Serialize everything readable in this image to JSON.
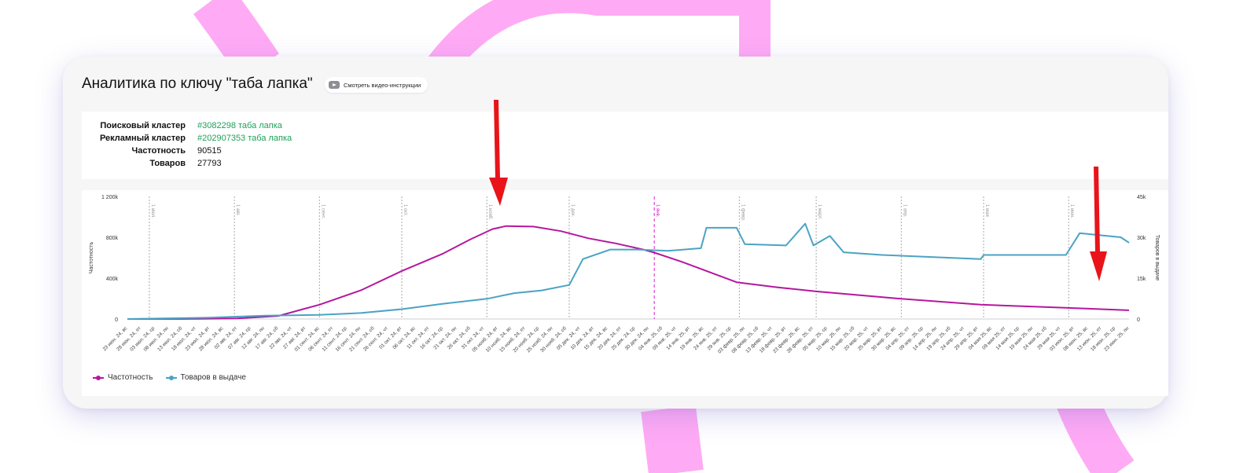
{
  "colors": {
    "accent_pink": "#ffaaf5",
    "frequency_line": "#b5179e",
    "products_line": "#4aa3c4",
    "link_green": "#1fa05a",
    "arrow_red": "#e8141a"
  },
  "header": {
    "title": "Аналитика по ключу \"таба лапка\"",
    "video_button_label": "Смотреть видео-инструкции",
    "video_icon": "play-icon"
  },
  "info": {
    "search_cluster_label": "Поисковый кластер",
    "search_cluster_value": "#3082298 таба лапка",
    "ad_cluster_label": "Рекламный кластер",
    "ad_cluster_value": "#202907353 таба лапка",
    "frequency_label": "Частотность",
    "frequency_value": "90515",
    "products_label": "Товаров",
    "products_value": "27793"
  },
  "chart_data": {
    "type": "line",
    "y_left_label": "Частотность",
    "y_right_label": "Товаров в выдаче",
    "y_left_ticks": [
      "0",
      "400k",
      "800k",
      "1 200k"
    ],
    "y_left_range": [
      0,
      1200000
    ],
    "y_right_ticks": [
      "0",
      "15k",
      "30k",
      "45k"
    ],
    "y_right_range": [
      0,
      45000
    ],
    "month_markers": [
      "1 июл.",
      "1 авг.",
      "1 сент.",
      "1 окт.",
      "1 нояб.",
      "1 дек.",
      "1 янв.",
      "1 февр.",
      "1 март.",
      "1 апр.",
      "1 мая",
      "1 июн."
    ],
    "today_marker": "1 янв.",
    "x_labels": [
      "23 июн. 24, вс",
      "28 июн. 24, пт",
      "03 июл. 24, ср",
      "08 июл. 24, пн",
      "13 июл. 24, сб",
      "18 июл. 24, чт",
      "23 июл. 24, вт",
      "28 июл. 24, вс",
      "02 авг. 24, пт",
      "07 авг. 24, ср",
      "12 авг. 24, пн",
      "17 авг. 24, сб",
      "22 авг. 24, чт",
      "27 авг. 24, вт",
      "01 сент. 24, вс",
      "06 сент. 24, пт",
      "11 сент. 24, ср",
      "16 сент. 24, пн",
      "21 сент. 24, сб",
      "26 сент. 24, чт",
      "01 окт. 24, вт",
      "06 окт. 24, вс",
      "11 окт. 24, пт",
      "16 окт. 24, ср",
      "21 окт. 24, пн",
      "26 окт. 24, сб",
      "31 окт. 24, чт",
      "05 нояб. 24, вт",
      "10 нояб. 24, вс",
      "15 нояб. 24, пт",
      "20 нояб. 24, ср",
      "25 нояб. 24, пн",
      "30 нояб. 24, сб",
      "05 дек. 24, чт",
      "10 дек. 24, вт",
      "15 дек. 24, вс",
      "20 дек. 24, пт",
      "25 дек. 24, ср",
      "30 дек. 24, пн",
      "04 янв. 25, сб",
      "09 янв. 25, чт",
      "14 янв. 25, вт",
      "19 янв. 25, вс",
      "24 янв. 25, пт",
      "29 янв. 25, ср",
      "03 февр. 25, пн",
      "08 февр. 25, сб",
      "13 февр. 25, чт",
      "18 февр. 25, вт",
      "23 февр. 25, вс",
      "28 февр. 25, пт",
      "05 мар. 25, ср",
      "10 мар. 25, пн",
      "15 мар. 25, сб",
      "20 мар. 25, чт",
      "25 мар. 25, вт",
      "30 мар. 25, вс",
      "04 апр. 25, пт",
      "09 апр. 25, ср",
      "14 апр. 25, пн",
      "19 апр. 25, сб",
      "24 апр. 25, чт",
      "29 апр. 25, вт",
      "04 мая 25, вс",
      "09 мая 25, пт",
      "14 мая 25, ср",
      "19 мая 25, пн",
      "24 мая 25, сб",
      "29 мая 25, чт",
      "03 июн. 25, вт",
      "08 июн. 25, вс",
      "13 июн. 25, пт",
      "18 июн. 25, ср",
      "23 июн. 25, пн"
    ],
    "series": [
      {
        "name": "Частотность",
        "axis": "left",
        "color": "#b5179e",
        "points": [
          [
            "23 июн. 24",
            0
          ],
          [
            "13 июл. 24",
            1000
          ],
          [
            "02 авг. 24",
            5000
          ],
          [
            "17 авг. 24",
            30000
          ],
          [
            "01 сент. 24",
            140000
          ],
          [
            "16 сент. 24",
            280000
          ],
          [
            "01 окт. 24",
            470000
          ],
          [
            "16 окт. 24",
            640000
          ],
          [
            "26 окт. 24",
            780000
          ],
          [
            "03 нояб. 24",
            880000
          ],
          [
            "08 нояб. 24",
            910000
          ],
          [
            "18 нояб. 24",
            905000
          ],
          [
            "28 нояб. 24",
            860000
          ],
          [
            "08 дек. 24",
            790000
          ],
          [
            "18 дек. 24",
            740000
          ],
          [
            "28 дек. 24",
            680000
          ],
          [
            "01 янв. 25",
            650000
          ],
          [
            "11 янв. 25",
            560000
          ],
          [
            "21 янв. 25",
            460000
          ],
          [
            "31 янв. 25",
            360000
          ],
          [
            "15 февр. 25",
            310000
          ],
          [
            "01 мар. 25",
            270000
          ],
          [
            "31 мар. 25",
            200000
          ],
          [
            "30 апр. 25",
            140000
          ],
          [
            "31 мая 25",
            110000
          ],
          [
            "23 июн. 25",
            85000
          ]
        ]
      },
      {
        "name": "Товаров в выдаче",
        "axis": "right",
        "color": "#4aa3c4",
        "points": [
          [
            "23 июн. 24",
            0
          ],
          [
            "23 июл. 24",
            500
          ],
          [
            "12 авг. 24",
            1200
          ],
          [
            "01 сент. 24",
            1500
          ],
          [
            "16 сент. 24",
            2200
          ],
          [
            "01 окт. 24",
            3600
          ],
          [
            "16 окт. 24",
            5600
          ],
          [
            "01 нояб. 24",
            7400
          ],
          [
            "11 нояб. 24",
            9500
          ],
          [
            "21 нояб. 24",
            10500
          ],
          [
            "01 дек. 24",
            12500
          ],
          [
            "06 дек. 24",
            22000
          ],
          [
            "16 дек. 24",
            25500
          ],
          [
            "26 дек. 24",
            25500
          ],
          [
            "06 янв. 25",
            25000
          ],
          [
            "18 янв. 25",
            26000
          ],
          [
            "20 янв. 25",
            33500
          ],
          [
            "31 янв. 25",
            33500
          ],
          [
            "03 февр. 25",
            27500
          ],
          [
            "18 февр. 25",
            27000
          ],
          [
            "25 февр. 25",
            35000
          ],
          [
            "28 февр. 25",
            27000
          ],
          [
            "06 мар. 25",
            30500
          ],
          [
            "11 мар. 25",
            24500
          ],
          [
            "25 мар. 25",
            23500
          ],
          [
            "30 апр. 25",
            22000
          ],
          [
            "01 мая 25",
            23500
          ],
          [
            "31 мая 25",
            23500
          ],
          [
            "05 июн. 25",
            31500
          ],
          [
            "20 июн. 25",
            30000
          ],
          [
            "23 июн. 25",
            28000
          ]
        ]
      }
    ],
    "legend": [
      {
        "label": "Частотность",
        "color": "#b5179e"
      },
      {
        "label": "Товаров в выдаче",
        "color": "#4aa3c4"
      }
    ],
    "legend_position": "bottom-left",
    "grid": "vertical month lines only"
  }
}
